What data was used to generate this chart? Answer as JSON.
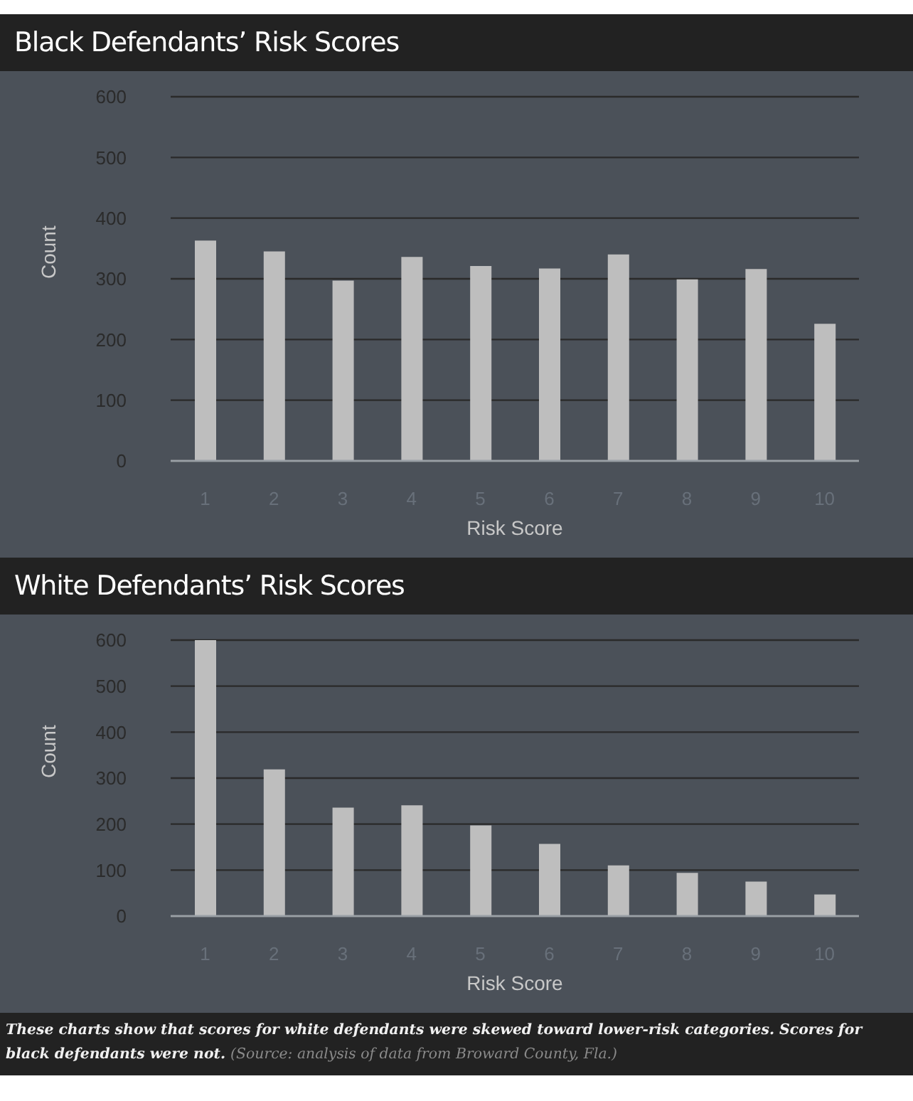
{
  "chart_data": [
    {
      "type": "bar",
      "title": "Black Defendants’ Risk Scores",
      "xlabel": "Risk Score",
      "ylabel": "Count",
      "categories": [
        "1",
        "2",
        "3",
        "4",
        "5",
        "6",
        "7",
        "8",
        "9",
        "10"
      ],
      "values": [
        363,
        345,
        297,
        336,
        321,
        317,
        340,
        299,
        316,
        226
      ],
      "color": "#bebebe",
      "ylim": [
        0,
        600
      ],
      "yticks": [
        0,
        100,
        200,
        300,
        400,
        500,
        600
      ],
      "grid": "y",
      "legend": false
    },
    {
      "type": "bar",
      "title": "White Defendants’ Risk Scores",
      "xlabel": "Risk Score",
      "ylabel": "Count",
      "categories": [
        "1",
        "2",
        "3",
        "4",
        "5",
        "6",
        "7",
        "8",
        "9",
        "10"
      ],
      "values": [
        600,
        319,
        236,
        241,
        197,
        157,
        110,
        94,
        75,
        47
      ],
      "color": "#bebebe",
      "ylim": [
        0,
        600
      ],
      "yticks": [
        0,
        100,
        200,
        300,
        400,
        500,
        600
      ],
      "grid": "y",
      "legend": false,
      "annotations": [
        "These charts show that scores for white defendants were skewed toward lower-risk categories. Scores for black defendants were not.",
        "(Source: analysis of data from Broward County, Fla.)"
      ]
    }
  ]
}
